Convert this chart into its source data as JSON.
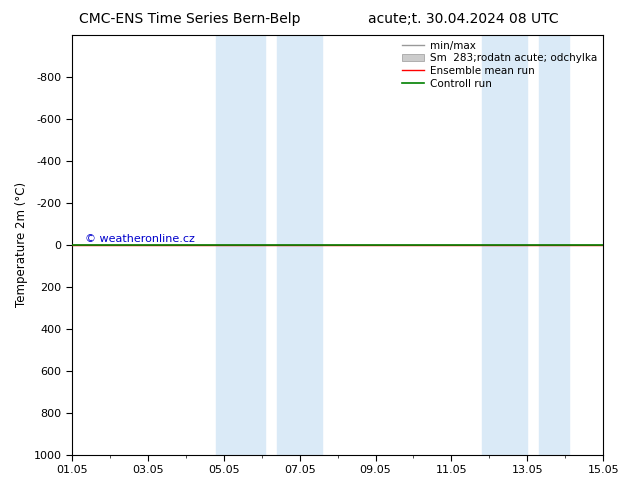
{
  "title_left": "CMC-ENS Time Series Bern-Belp",
  "title_right": "acute;t. 30.04.2024 08 UTC",
  "ylabel": "Temperature 2m (°C)",
  "xlabel": "",
  "background_color": "#ffffff",
  "plot_bg_color": "#ffffff",
  "xtick_labels": [
    "01.05",
    "03.05",
    "05.05",
    "07.05",
    "09.05",
    "11.05",
    "13.05",
    "15.05"
  ],
  "xtick_positions": [
    0,
    2,
    4,
    6,
    8,
    10,
    12,
    14
  ],
  "ylim": [
    -1000,
    1000
  ],
  "ytick_positions": [
    -800,
    -600,
    -400,
    -200,
    0,
    200,
    400,
    600,
    800,
    1000
  ],
  "ytick_labels": [
    "-800",
    "-600",
    "-400",
    "-200",
    "0",
    "200",
    "400",
    "600",
    "800",
    "1000"
  ],
  "shaded_regions": [
    [
      3.8,
      5.1
    ],
    [
      5.4,
      6.6
    ],
    [
      10.8,
      12.0
    ],
    [
      12.3,
      13.1
    ]
  ],
  "shaded_color": "#daeaf7",
  "control_run_y": 0.0,
  "ensemble_mean_y": 0.0,
  "minmax_y": 0.0,
  "control_run_color": "#008000",
  "ensemble_mean_color": "#ff0000",
  "minmax_color": "#999999",
  "legend_labels": [
    "min/max",
    "Sm  283;rodatn acute; odchylka",
    "Ensemble mean run",
    "Controll run"
  ],
  "watermark": "© weatheronline.cz",
  "watermark_color": "#0000cc",
  "title_fontsize": 10,
  "axis_fontsize": 8.5,
  "tick_fontsize": 8,
  "legend_fontsize": 7.5
}
